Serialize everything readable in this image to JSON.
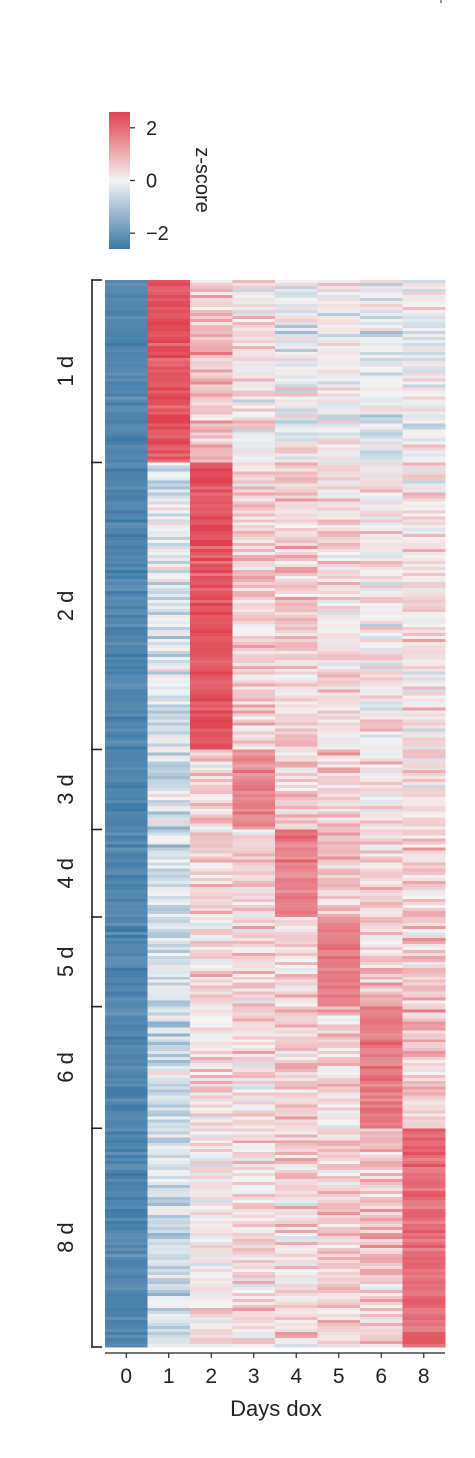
{
  "chart_data": {
    "type": "heatmap",
    "xlabel": "Days dox",
    "x_categories": [
      "0",
      "1",
      "2",
      "3",
      "4",
      "5",
      "6",
      "8"
    ],
    "row_groups": [
      {
        "label": "1 d",
        "fraction": 0.171,
        "peak_column": "1"
      },
      {
        "label": "2 d",
        "fraction": 0.269,
        "peak_column": "2"
      },
      {
        "label": "3 d",
        "fraction": 0.075,
        "peak_column": "3"
      },
      {
        "label": "4 d",
        "fraction": 0.082,
        "peak_column": "4"
      },
      {
        "label": "5 d",
        "fraction": 0.084,
        "peak_column": "5"
      },
      {
        "label": "6 d",
        "fraction": 0.114,
        "peak_column": "6"
      },
      {
        "label": "8 d",
        "fraction": 0.205,
        "peak_column": "8"
      }
    ],
    "colorbar": {
      "title": "z-score",
      "ticks": [
        "2",
        "0",
        "−2"
      ],
      "tick_values": [
        2,
        0,
        -2
      ],
      "range": [
        -2.6,
        2.6
      ],
      "colors": {
        "high": "#e0414f",
        "mid": "#f4f4f4",
        "low": "#3c78a6"
      }
    },
    "mean_z_scores": [
      [
        -2.3,
        2.3,
        0.8,
        0.15,
        -0.05,
        0.0,
        -0.15,
        -0.15
      ],
      [
        -2.3,
        -0.3,
        2.3,
        0.45,
        0.5,
        0.35,
        0.15,
        0.25
      ],
      [
        -2.3,
        -0.4,
        0.4,
        1.6,
        0.6,
        0.5,
        0.4,
        0.45
      ],
      [
        -2.3,
        -0.5,
        0.5,
        0.5,
        1.7,
        0.6,
        0.5,
        0.55
      ],
      [
        -2.3,
        -0.5,
        0.4,
        0.45,
        0.55,
        1.7,
        0.6,
        0.55
      ],
      [
        -2.3,
        -0.5,
        0.25,
        0.4,
        0.5,
        0.55,
        1.8,
        0.75
      ],
      [
        -2.3,
        -0.45,
        0.1,
        0.3,
        0.4,
        0.5,
        0.7,
        2.0
      ]
    ]
  }
}
